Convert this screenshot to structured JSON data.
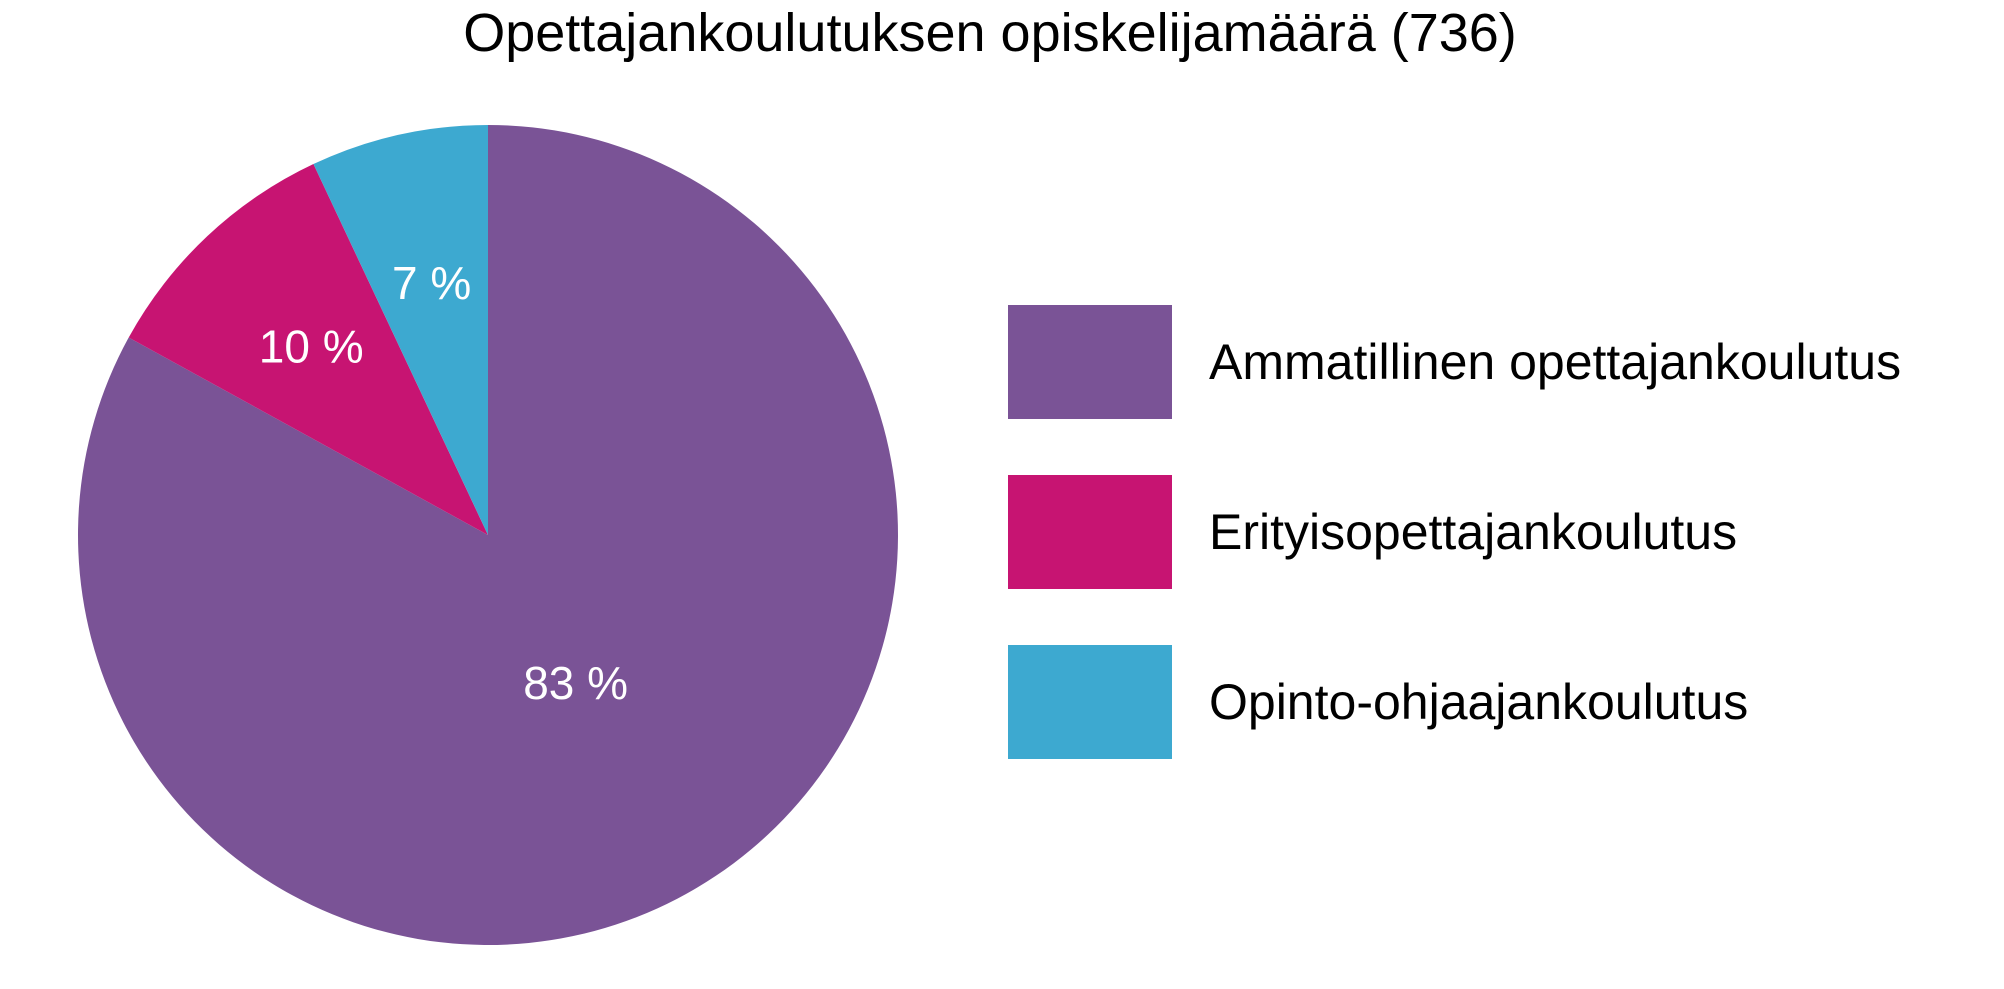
{
  "chart_data": {
    "type": "pie",
    "title": "Opettajankoulutuksen opiskelijamäärä (736)",
    "categories": [
      "Ammatillinen opettajankoulutus",
      "Erityisopettajankoulutus",
      "Opinto-ohjaajankoulutus"
    ],
    "values": [
      83,
      10,
      7
    ],
    "labels": [
      "83 %",
      "10 %",
      "7 %"
    ],
    "colors": [
      "#7a5396",
      "#c71472",
      "#3da9d0"
    ],
    "legend": "right"
  }
}
